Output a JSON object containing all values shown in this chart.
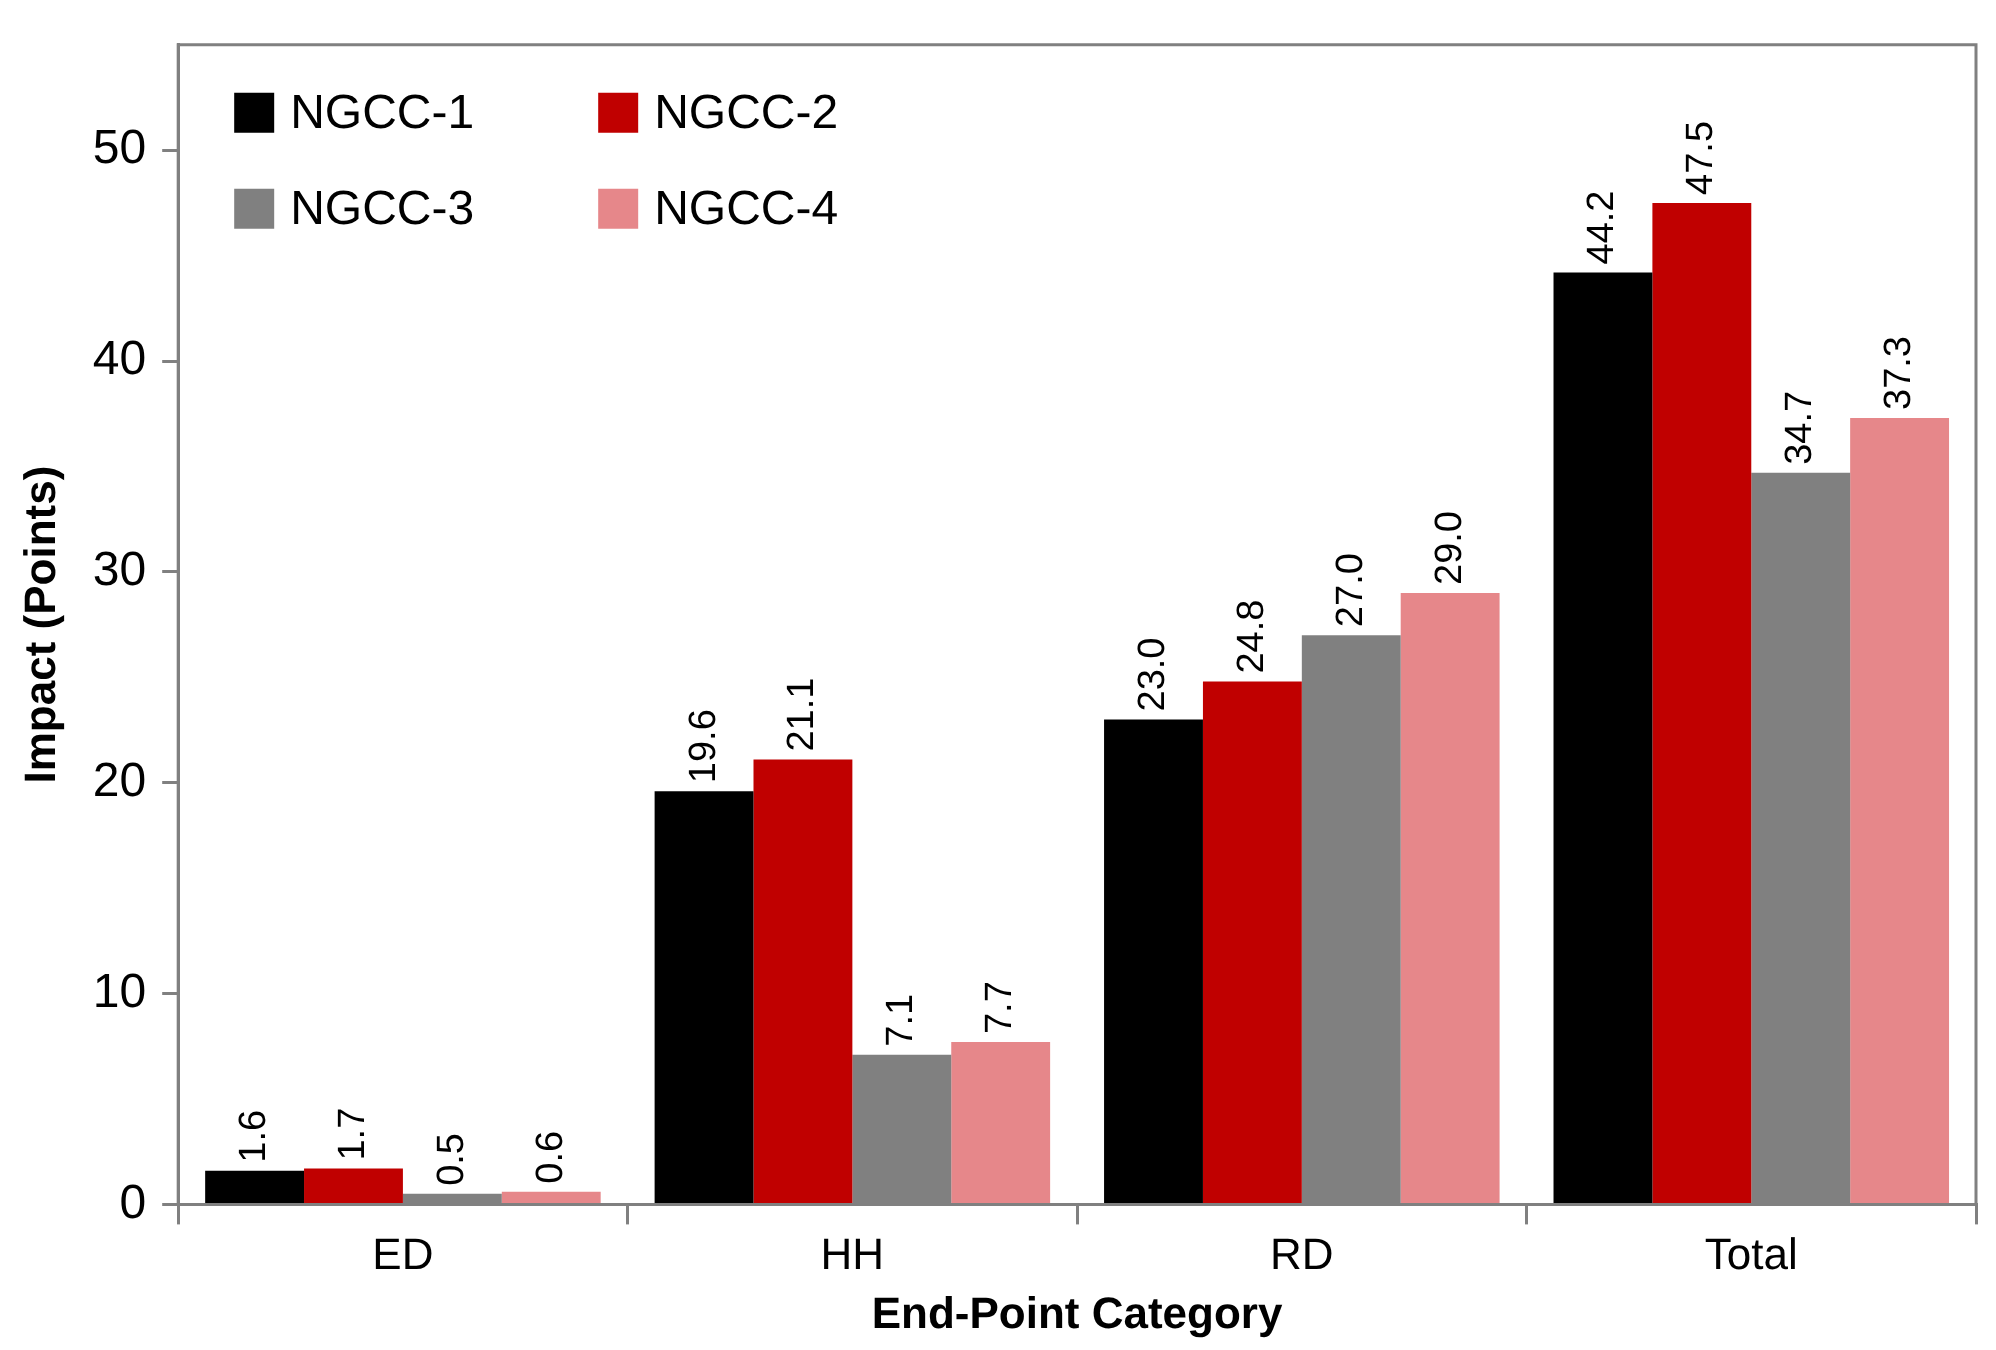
{
  "chart_data": {
    "type": "bar",
    "xlabel": "End-Point Category",
    "ylabel": "Impact (Points)",
    "categories": [
      "ED",
      "HH",
      "RD",
      "Total"
    ],
    "series": [
      {
        "name": "NGCC-1",
        "color": "#000000",
        "values": [
          1.6,
          19.6,
          23.0,
          44.2
        ],
        "value_labels": [
          "1.6",
          "19.6",
          "23.0",
          "44.2"
        ]
      },
      {
        "name": "NGCC-2",
        "color": "#c00000",
        "values": [
          1.7,
          21.1,
          24.8,
          47.5
        ],
        "value_labels": [
          "1.7",
          "21.1",
          "24.8",
          "47.5"
        ]
      },
      {
        "name": "NGCC-3",
        "color": "#808080",
        "values": [
          0.5,
          7.1,
          27.0,
          34.7
        ],
        "value_labels": [
          "0.5",
          "7.1",
          "27.0",
          "34.7"
        ]
      },
      {
        "name": "NGCC-4",
        "color": "#e6878a",
        "values": [
          0.6,
          7.7,
          29.0,
          37.3
        ],
        "value_labels": [
          "0.6",
          "7.7",
          "29.0",
          "37.3"
        ]
      }
    ],
    "ylim": [
      0,
      55
    ],
    "yticks": [
      0,
      10,
      20,
      30,
      40,
      50
    ],
    "grid": false,
    "legend": "top left"
  }
}
